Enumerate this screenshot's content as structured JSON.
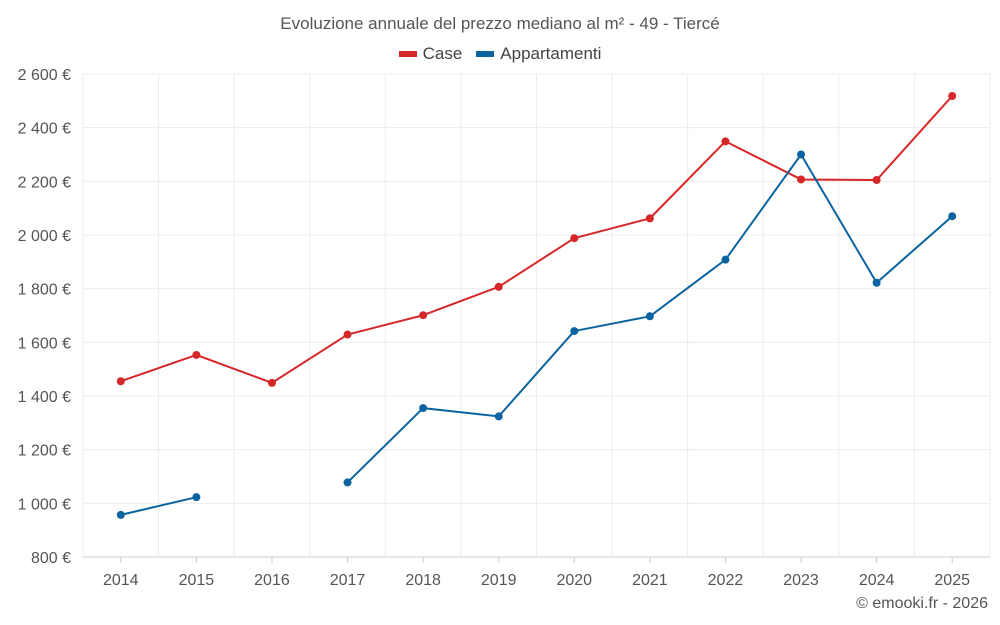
{
  "chart_data": {
    "type": "line",
    "title": "Evoluzione annuale del prezzo mediano al m² - 49 - Tiercé",
    "xlabel": "",
    "ylabel": "",
    "x": [
      "2014",
      "2015",
      "2016",
      "2017",
      "2018",
      "2019",
      "2020",
      "2021",
      "2022",
      "2023",
      "2024",
      "2025"
    ],
    "ylim": [
      800,
      2600
    ],
    "yticks": [
      800,
      1000,
      1200,
      1400,
      1600,
      1800,
      2000,
      2200,
      2400,
      2600
    ],
    "ytick_labels": [
      "800 €",
      "1 000 €",
      "1 200 €",
      "1 400 €",
      "1 600 €",
      "1 800 €",
      "2 000 €",
      "2 200 €",
      "2 400 €",
      "2 600 €"
    ],
    "grid": true,
    "legend_position": "top-center",
    "series": [
      {
        "name": "Case",
        "color": "#d62728",
        "values": [
          1455,
          1553,
          1449,
          1629,
          1701,
          1807,
          1988,
          2062,
          2349,
          2207,
          2205,
          2518
        ]
      },
      {
        "name": "Appartamenti",
        "color": "#0b64a0",
        "values": [
          957,
          1023,
          null,
          1078,
          1355,
          1324,
          1642,
          1697,
          1908,
          2300,
          1822,
          2070
        ]
      }
    ]
  },
  "credit": "© emooki.fr - 2026"
}
